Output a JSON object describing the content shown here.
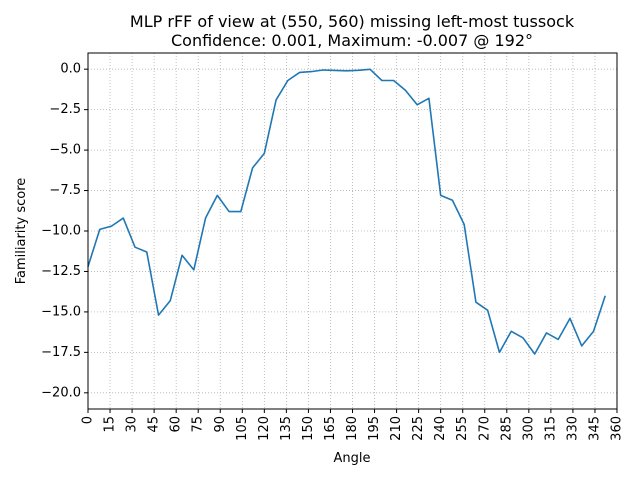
{
  "chart_data": {
    "type": "line",
    "title_line1": "MLP rFF of view at (550, 560) missing left-most tussock",
    "title_line2": "Confidence: 0.001, Maximum: -0.007 @ 192°",
    "xlabel": "Angle",
    "ylabel": "Familiarity score",
    "xlim": [
      0,
      360
    ],
    "ylim": [
      -21,
      1
    ],
    "xticks": [
      0,
      15,
      30,
      45,
      60,
      75,
      90,
      105,
      120,
      135,
      150,
      165,
      180,
      195,
      210,
      225,
      240,
      255,
      270,
      285,
      300,
      315,
      330,
      345,
      360
    ],
    "yticks": [
      0.0,
      -2.5,
      -5.0,
      -7.5,
      -10.0,
      -12.5,
      -15.0,
      -17.5,
      -20.0
    ],
    "ytick_labels": [
      "0.0",
      "−2.5",
      "−5.0",
      "−7.5",
      "−10.0",
      "−12.5",
      "−15.0",
      "−17.5",
      "−20.0"
    ],
    "grid": true,
    "line_color": "#1f77b4",
    "x": [
      0,
      8,
      16,
      24,
      32,
      40,
      48,
      56,
      64,
      72,
      80,
      88,
      96,
      104,
      112,
      120,
      128,
      136,
      144,
      152,
      160,
      168,
      176,
      184,
      192,
      200,
      208,
      216,
      224,
      232,
      240,
      248,
      256,
      264,
      272,
      280,
      288,
      296,
      304,
      312,
      320,
      328,
      336,
      344,
      352
    ],
    "values": [
      -12.2,
      -9.9,
      -9.7,
      -9.2,
      -11.0,
      -11.3,
      -15.2,
      -14.3,
      -11.5,
      -12.4,
      -9.2,
      -7.8,
      -8.8,
      -8.8,
      -6.1,
      -5.2,
      -1.9,
      -0.7,
      -0.2,
      -0.15,
      -0.05,
      -0.08,
      -0.1,
      -0.07,
      -0.007,
      -0.7,
      -0.7,
      -1.3,
      -2.2,
      -1.8,
      -7.8,
      -8.1,
      -9.6,
      -14.4,
      -14.9,
      -17.5,
      -16.2,
      -16.6,
      -17.6,
      -16.3,
      -16.7,
      -15.4,
      -17.1,
      -16.2,
      -14.0
    ]
  }
}
